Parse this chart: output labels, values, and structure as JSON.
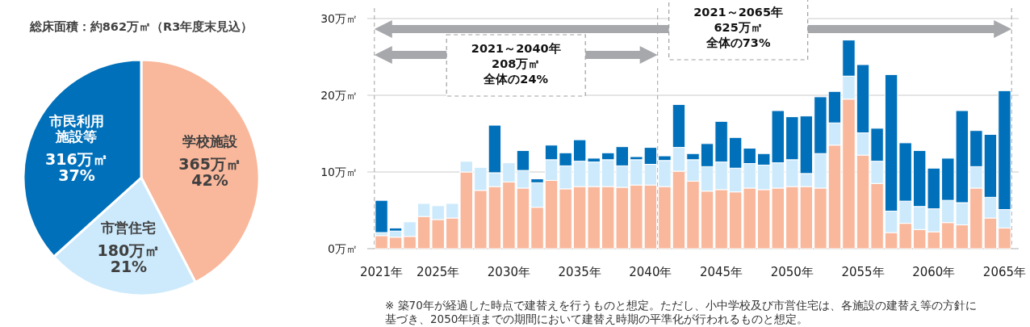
{
  "chart_data": [
    {
      "type": "pie",
      "title": "総床面積：約862万㎡（R3年度末見込）",
      "categories": [
        "学校施設",
        "市営住宅",
        "市民利用施設等"
      ],
      "values": [
        365,
        180,
        316
      ],
      "colors": [
        "#f9b79b",
        "#cdeafc",
        "#0070ba"
      ],
      "value_labels": [
        "365万㎡\n42%",
        "180万㎡\n21%",
        "316万㎡\n37%"
      ]
    },
    {
      "type": "bar",
      "stacked": true,
      "grid": "y",
      "x": [
        2021,
        2022,
        2023,
        2024,
        2025,
        2026,
        2027,
        2028,
        2029,
        2030,
        2031,
        2032,
        2033,
        2034,
        2035,
        2036,
        2037,
        2038,
        2039,
        2040,
        2041,
        2042,
        2043,
        2044,
        2045,
        2046,
        2047,
        2048,
        2049,
        2050,
        2051,
        2052,
        2053,
        2054,
        2055,
        2056,
        2057,
        2058,
        2059,
        2060,
        2061,
        2062,
        2063,
        2064,
        2065
      ],
      "series": [
        {
          "color": "#f9b79b",
          "values": [
            1.7,
            1.5,
            1.6,
            4.2,
            3.8,
            4.0,
            10.0,
            7.6,
            8.1,
            8.7,
            7.9,
            5.4,
            8.9,
            7.8,
            8.1,
            8.1,
            8.1,
            8.0,
            8.3,
            8.3,
            8.1,
            10.1,
            8.8,
            7.5,
            7.7,
            7.4,
            7.9,
            7.7,
            7.9,
            8.1,
            8.1,
            7.9,
            13.5,
            19.5,
            12.2,
            8.5,
            2.1,
            3.3,
            2.5,
            2.2,
            3.4,
            3.1,
            7.9,
            4.0,
            2.7
          ]
        },
        {
          "color": "#cdeafc",
          "values": [
            0.4,
            0.8,
            1.9,
            1.7,
            1.8,
            1.9,
            1.4,
            3.0,
            1.8,
            2.5,
            2.3,
            3.2,
            2.7,
            3.0,
            3.3,
            3.2,
            3.5,
            2.8,
            3.3,
            2.7,
            3.4,
            3.1,
            2.8,
            3.2,
            3.6,
            3.1,
            3.2,
            3.2,
            3.3,
            3.5,
            1.7,
            4.5,
            2.9,
            3.0,
            2.9,
            2.9,
            2.8,
            2.9,
            3.0,
            3.0,
            2.9,
            2.9,
            2.8,
            2.7,
            2.4
          ]
        },
        {
          "color": "#0070ba",
          "values": [
            4.2,
            0.4,
            0,
            0,
            0,
            0,
            0,
            0,
            6.2,
            0,
            2.6,
            0.5,
            1.9,
            1.7,
            2.8,
            0.5,
            0.9,
            2.5,
            0.4,
            2.2,
            0.6,
            5.6,
            0.8,
            3.0,
            5.3,
            4.0,
            2.0,
            1.5,
            6.8,
            5.6,
            7.5,
            7.4,
            4.1,
            4.7,
            8.9,
            4.3,
            17.8,
            7.6,
            7.3,
            5.3,
            5.5,
            12.0,
            4.7,
            8.2,
            15.5
          ]
        }
      ],
      "xlim": [
        2020,
        2066
      ],
      "xticks": [
        {
          "value": 2021,
          "label": "2021年"
        },
        {
          "value": 2025,
          "label": "2025年"
        },
        {
          "value": 2030,
          "label": "2030年"
        },
        {
          "value": 2035,
          "label": "2035年"
        },
        {
          "value": 2040,
          "label": "2040年"
        },
        {
          "value": 2045,
          "label": "2045年"
        },
        {
          "value": 2050,
          "label": "2050年"
        },
        {
          "value": 2055,
          "label": "2055年"
        },
        {
          "value": 2060,
          "label": "2060年"
        },
        {
          "value": 2065,
          "label": "2065年"
        }
      ],
      "ylim": [
        0,
        30
      ],
      "yticks": [
        {
          "value": 0,
          "label": "0万㎡"
        },
        {
          "value": 10,
          "label": "10万㎡"
        },
        {
          "value": 20,
          "label": "20万㎡"
        },
        {
          "value": 30,
          "label": "30万㎡"
        }
      ],
      "ref_lines": [
        {
          "axis": "x",
          "value": 2020.5,
          "line_style": "dashed",
          "color": "#b0b0b0"
        },
        {
          "axis": "x",
          "value": 2040.5,
          "line_style": "dashed",
          "color": "#b0b0b0"
        },
        {
          "axis": "x",
          "value": 2065.5,
          "line_style": "dashed",
          "color": "#b0b0b0"
        }
      ],
      "annotations": [
        "2021～2065年",
        "625万㎡",
        "全体の73%",
        "2021～2040年",
        "208万㎡",
        "全体の24%",
        "※ 築70年が経過した時点で建替えを行うものと想定。ただし、小中学校及び市営住宅は、各施設の建替え等の方針に基づき、2050年頃までの期間において建替え時期の平準化が行われるものと想定。"
      ]
    }
  ]
}
